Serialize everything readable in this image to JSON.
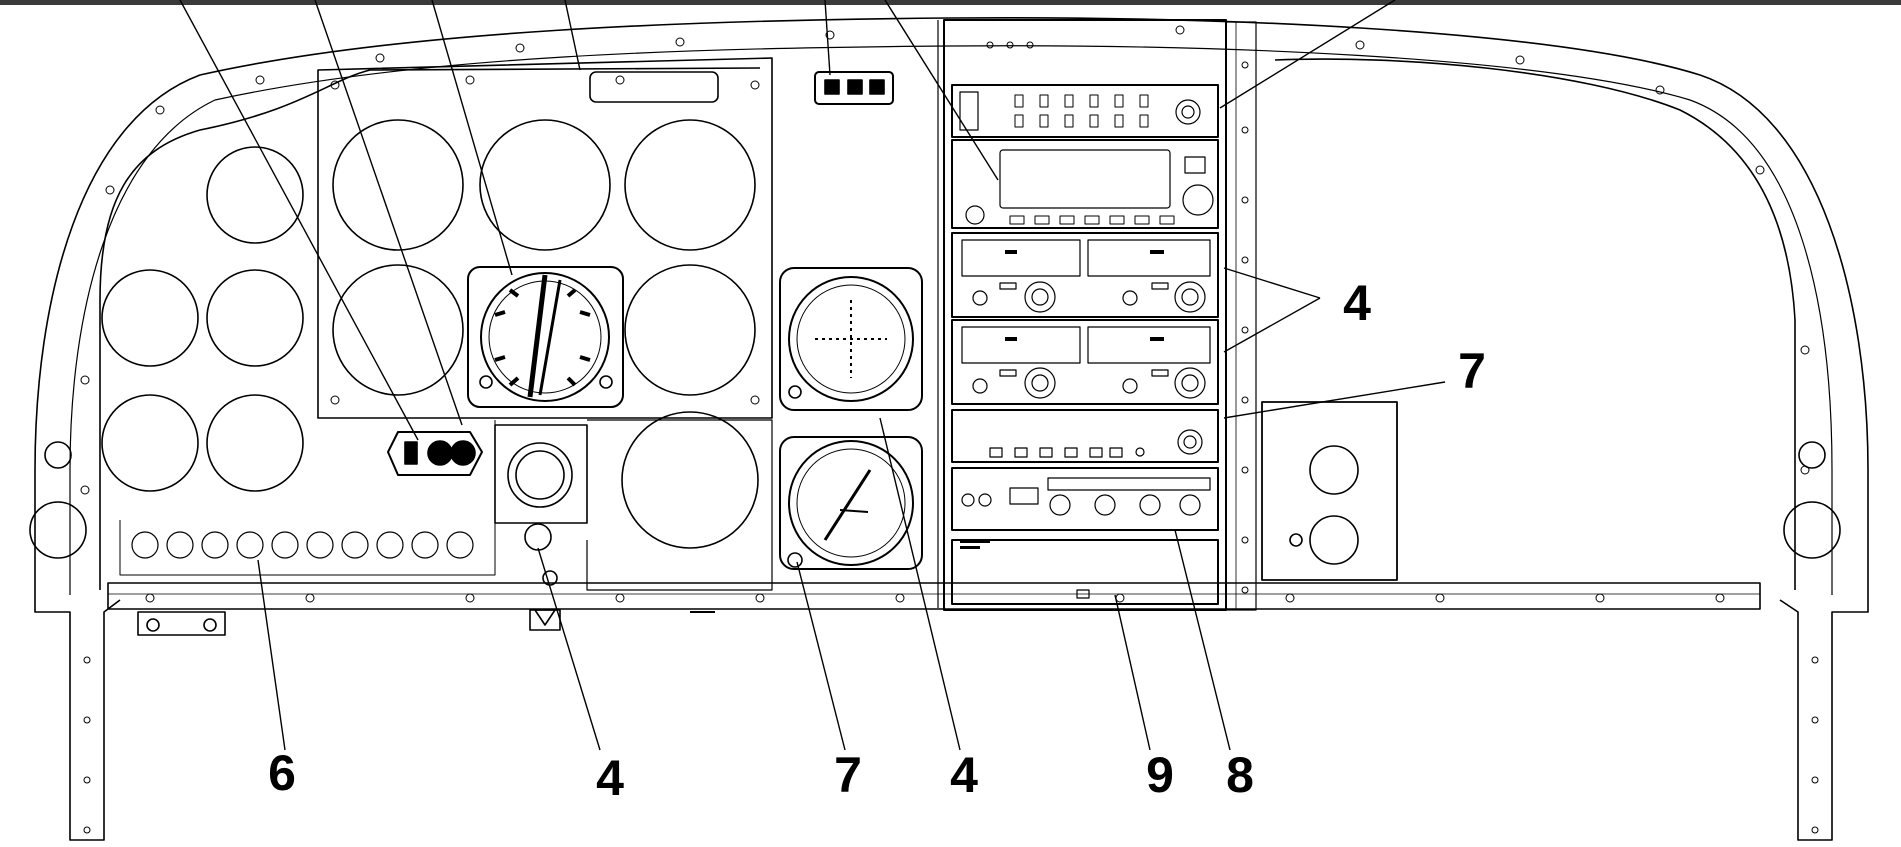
{
  "diagram": {
    "callouts": [
      {
        "id": "c6",
        "label": "6"
      },
      {
        "id": "c4a",
        "label": "4"
      },
      {
        "id": "c7a",
        "label": "7"
      },
      {
        "id": "c4b",
        "label": "4"
      },
      {
        "id": "c9",
        "label": "9"
      },
      {
        "id": "c8",
        "label": "8"
      },
      {
        "id": "c4r",
        "label": "4"
      },
      {
        "id": "c7r",
        "label": "7"
      }
    ]
  }
}
